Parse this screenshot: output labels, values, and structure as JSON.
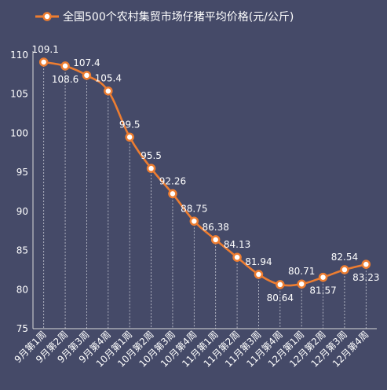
{
  "chart_data": {
    "type": "line",
    "legend": "全国500个农村集贸市场仔猪平均价格(元/公斤)",
    "categories": [
      "9月第1周",
      "9月第2周",
      "9月第3周",
      "9月第4周",
      "10月第1周",
      "10月第2周",
      "10月第3周",
      "10月第4周",
      "11月第1周",
      "11月第2周",
      "11月第3周",
      "11月第4周",
      "12月第1周",
      "12月第2周",
      "12月第3周",
      "12月第4周"
    ],
    "values": [
      109.1,
      108.6,
      107.4,
      105.4,
      99.5,
      95.5,
      92.26,
      88.75,
      86.38,
      84.13,
      81.94,
      80.64,
      80.71,
      81.57,
      82.54,
      83.23
    ],
    "value_labels": [
      "109.1",
      "108.6",
      "107.4",
      "105.4",
      "99.5",
      "95.5",
      "92.26",
      "88.75",
      "86.38",
      "84.13",
      "81.94",
      "80.64",
      "80.71",
      "81.57",
      "82.54",
      "83.23"
    ],
    "ylim": [
      75,
      110
    ],
    "yticks": [
      75,
      80,
      85,
      90,
      95,
      100,
      105,
      110
    ],
    "label_position": [
      "above",
      "below",
      "above",
      "above",
      "above",
      "above",
      "above",
      "above",
      "above",
      "above",
      "above",
      "below",
      "above",
      "below",
      "above",
      "below"
    ],
    "line_color": "#ed7d31",
    "marker_fill": "#ffffff",
    "grid": "vertical-dashed"
  }
}
